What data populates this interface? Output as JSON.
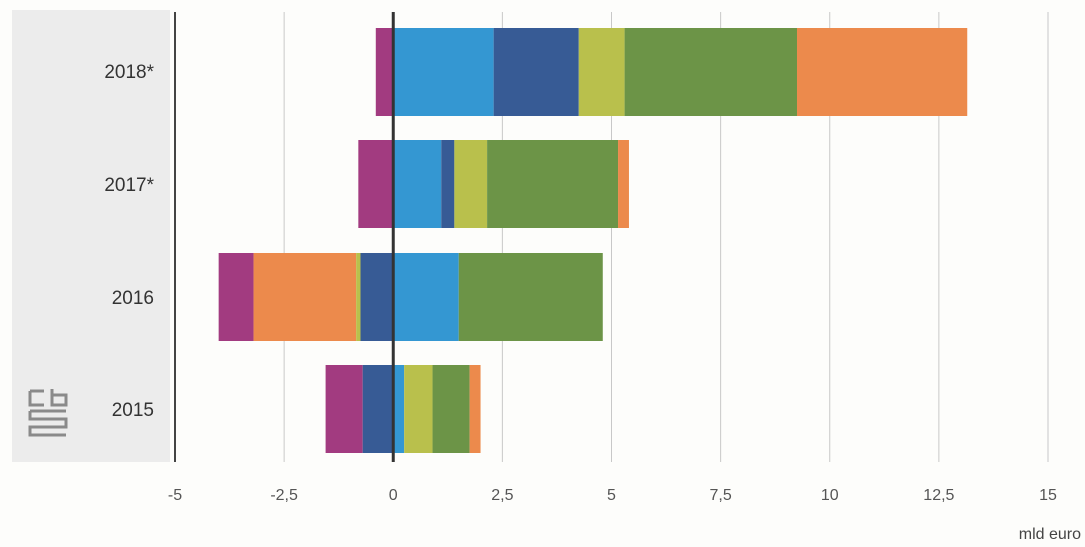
{
  "chart_data": {
    "type": "bar",
    "orientation": "horizontal",
    "stacked": true,
    "categories": [
      "2018*",
      "2017*",
      "2016",
      "2015"
    ],
    "unit_label": "mld euro",
    "xlim": [
      -5,
      15
    ],
    "xticks": [
      -5,
      -2.5,
      0,
      2.5,
      5,
      7.5,
      10,
      12.5,
      15
    ],
    "xtick_labels": [
      "-5",
      "-2,5",
      "0",
      "2,5",
      "5",
      "7,5",
      "10",
      "12,5",
      "15"
    ],
    "grid": "vertical",
    "legend": "none",
    "segments": [
      [
        {
          "start": -0.4,
          "end": 0,
          "color": "#a23b80"
        },
        {
          "start": 0,
          "end": 2.3,
          "color": "#3497d2"
        },
        {
          "start": 2.3,
          "end": 4.25,
          "color": "#375b95"
        },
        {
          "start": 4.25,
          "end": 5.3,
          "color": "#b9c04c"
        },
        {
          "start": 5.3,
          "end": 9.25,
          "color": "#6c9447"
        },
        {
          "start": 9.25,
          "end": 13.15,
          "color": "#ec8a4c"
        }
      ],
      [
        {
          "start": -0.8,
          "end": 0,
          "color": "#a23b80"
        },
        {
          "start": 0,
          "end": 1.1,
          "color": "#3497d2"
        },
        {
          "start": 1.1,
          "end": 1.4,
          "color": "#375b95"
        },
        {
          "start": 1.4,
          "end": 2.15,
          "color": "#b9c04c"
        },
        {
          "start": 2.15,
          "end": 5.15,
          "color": "#6c9447"
        },
        {
          "start": 5.15,
          "end": 5.4,
          "color": "#ec8a4c"
        }
      ],
      [
        {
          "start": -4.0,
          "end": -3.2,
          "color": "#a23b80"
        },
        {
          "start": -3.2,
          "end": -0.85,
          "color": "#ec8a4c"
        },
        {
          "start": -0.85,
          "end": -0.75,
          "color": "#b9c04c"
        },
        {
          "start": -0.75,
          "end": 0,
          "color": "#375b95"
        },
        {
          "start": 0,
          "end": 1.5,
          "color": "#3497d2"
        },
        {
          "start": 1.5,
          "end": 4.8,
          "color": "#6c9447"
        }
      ],
      [
        {
          "start": -1.55,
          "end": -0.7,
          "color": "#a23b80"
        },
        {
          "start": -0.7,
          "end": 0,
          "color": "#375b95"
        },
        {
          "start": 0,
          "end": 0.25,
          "color": "#3497d2"
        },
        {
          "start": 0.25,
          "end": 0.9,
          "color": "#b9c04c"
        },
        {
          "start": 0.9,
          "end": 1.75,
          "color": "#6c9447"
        },
        {
          "start": 1.75,
          "end": 2.0,
          "color": "#ec8a4c"
        }
      ]
    ]
  }
}
